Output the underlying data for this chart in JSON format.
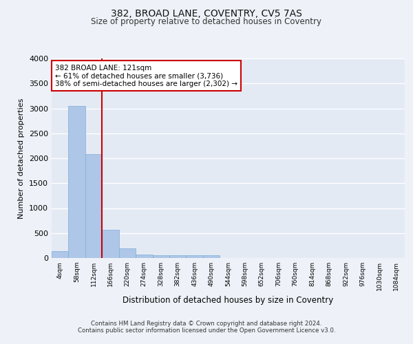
{
  "title": "382, BROAD LANE, COVENTRY, CV5 7AS",
  "subtitle": "Size of property relative to detached houses in Coventry",
  "xlabel": "Distribution of detached houses by size in Coventry",
  "ylabel": "Number of detached properties",
  "bin_labels": [
    "4sqm",
    "58sqm",
    "112sqm",
    "166sqm",
    "220sqm",
    "274sqm",
    "328sqm",
    "382sqm",
    "436sqm",
    "490sqm",
    "544sqm",
    "598sqm",
    "652sqm",
    "706sqm",
    "760sqm",
    "814sqm",
    "868sqm",
    "922sqm",
    "976sqm",
    "1030sqm",
    "1084sqm"
  ],
  "bar_values": [
    140,
    3050,
    2080,
    560,
    200,
    75,
    55,
    50,
    50,
    50,
    0,
    0,
    0,
    0,
    0,
    0,
    0,
    0,
    0,
    0,
    0
  ],
  "bar_color": "#aec6e8",
  "bar_edge_color": "#7bafd4",
  "vline_color": "#cc0000",
  "annotation_text": "382 BROAD LANE: 121sqm\n← 61% of detached houses are smaller (3,736)\n38% of semi-detached houses are larger (2,302) →",
  "annotation_box_color": "#ffffff",
  "annotation_box_edge": "#cc0000",
  "ylim": [
    0,
    4000
  ],
  "yticks": [
    0,
    500,
    1000,
    1500,
    2000,
    2500,
    3000,
    3500,
    4000
  ],
  "footer_line1": "Contains HM Land Registry data © Crown copyright and database right 2024.",
  "footer_line2": "Contains public sector information licensed under the Open Government Licence v3.0.",
  "background_color": "#eef2f8",
  "plot_bg_color": "#e4eaf4"
}
